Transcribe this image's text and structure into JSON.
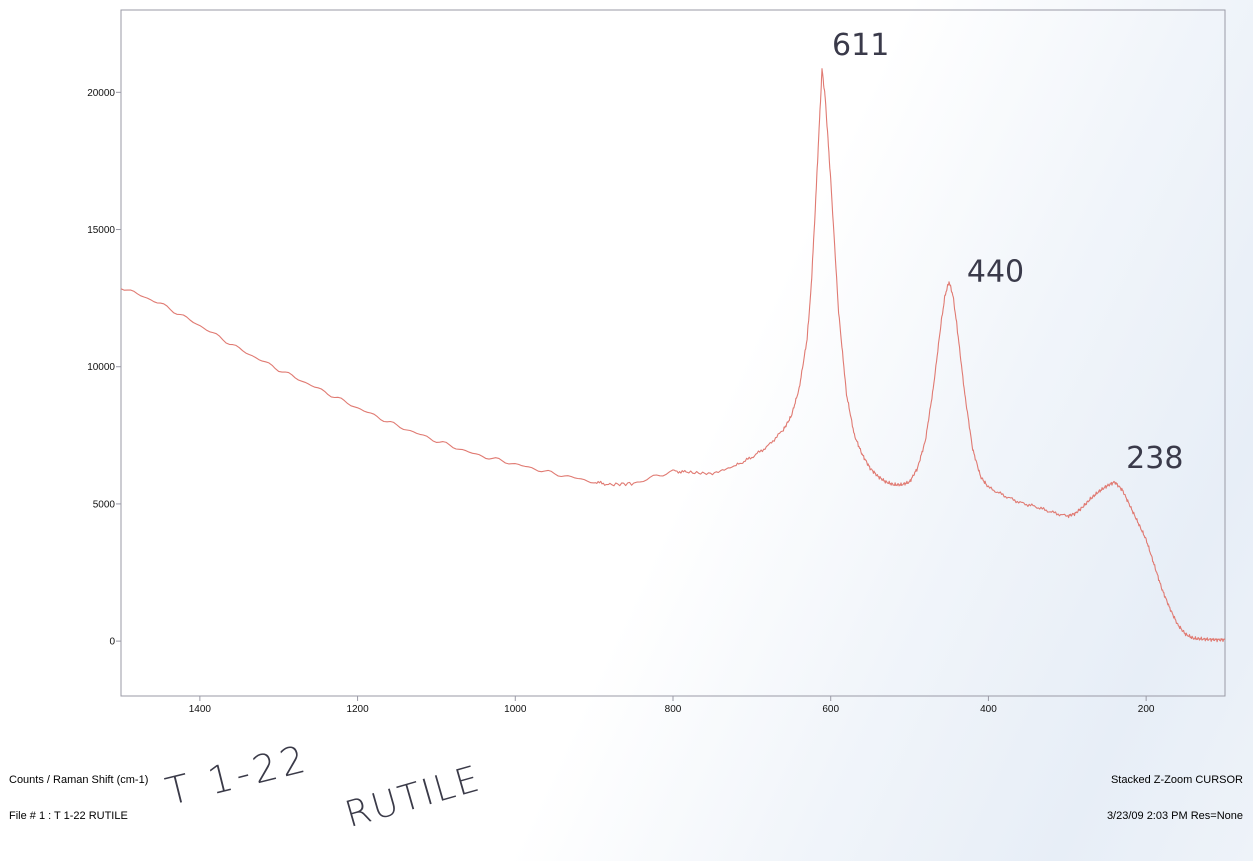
{
  "chart_data": {
    "type": "line",
    "xlabel": "",
    "ylabel": "",
    "xlim": [
      1500,
      100
    ],
    "ylim": [
      -2000,
      23000
    ],
    "x_reversed": true,
    "x_ticks": [
      1400,
      1200,
      1000,
      800,
      600,
      400,
      200
    ],
    "y_ticks": [
      0,
      5000,
      10000,
      15000,
      20000
    ],
    "grid": false,
    "line_color": "#e07a72",
    "series": [
      {
        "x": [
          1500,
          1450,
          1400,
          1350,
          1300,
          1250,
          1200,
          1150,
          1100,
          1050,
          1000,
          950,
          900,
          880,
          850,
          800,
          780,
          750,
          720,
          700,
          680,
          660,
          650,
          640,
          630,
          625,
          620,
          615,
          611,
          607,
          600,
          590,
          580,
          570,
          560,
          550,
          540,
          530,
          520,
          510,
          500,
          490,
          480,
          470,
          460,
          455,
          450,
          445,
          440,
          430,
          420,
          410,
          400,
          380,
          360,
          340,
          320,
          300,
          290,
          280,
          270,
          260,
          250,
          240,
          230,
          220,
          210,
          200,
          190,
          180,
          170,
          160,
          150,
          140,
          130,
          120,
          110,
          100
        ],
        "y": [
          12900,
          12300,
          11500,
          10650,
          9900,
          9200,
          8500,
          7850,
          7300,
          6800,
          6450,
          6100,
          5800,
          5700,
          5750,
          6200,
          6150,
          6100,
          6400,
          6700,
          7100,
          7700,
          8200,
          9200,
          11000,
          12800,
          15500,
          18500,
          20850,
          19800,
          16800,
          12000,
          9000,
          7500,
          6800,
          6300,
          6000,
          5800,
          5700,
          5700,
          5800,
          6300,
          7300,
          9200,
          11600,
          12600,
          13100,
          12600,
          11500,
          9000,
          7000,
          6000,
          5600,
          5300,
          5050,
          4900,
          4700,
          4550,
          4650,
          4900,
          5200,
          5450,
          5650,
          5800,
          5500,
          4900,
          4300,
          3700,
          2800,
          1900,
          1200,
          600,
          250,
          100,
          80,
          60,
          50,
          50
        ]
      }
    ],
    "peak_annotations": [
      {
        "x": 611,
        "label": "611"
      },
      {
        "x": 440,
        "label": "440"
      },
      {
        "x": 238,
        "label": "238"
      }
    ]
  },
  "footer": {
    "axis_caption": "Counts / Raman Shift (cm-1)",
    "file_label": "File # 1 : T 1-22 RUTILE",
    "mode_label": "Stacked Z-Zoom CURSOR",
    "timestamp_label": "3/23/09  2:03 PM  Res=None"
  },
  "handwriting": {
    "sample_id": "T 1-22",
    "mineral": "RUTILE"
  }
}
